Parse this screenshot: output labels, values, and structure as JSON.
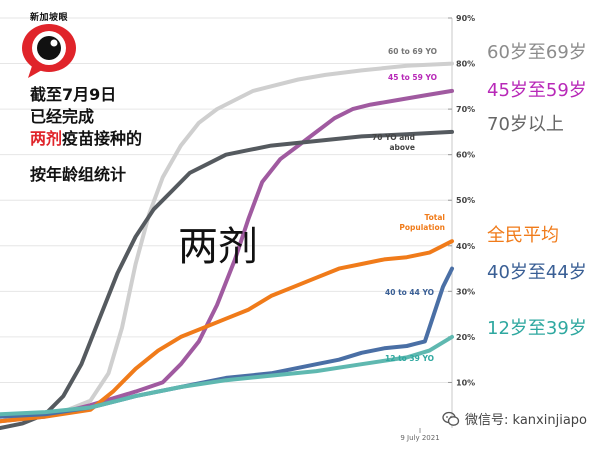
{
  "chart_data": {
    "type": "line",
    "title_lines": [
      "截至7月9日",
      "已经完成"
    ],
    "title_red": "两剂",
    "title_after_red": "疫苗接种的",
    "subtitle": "按年龄组统计",
    "center_label": "两剂",
    "x_label": "9 July 2021",
    "ylim": [
      0,
      90
    ],
    "y_ticks": [
      "10%",
      "20%",
      "30%",
      "40%",
      "50%",
      "60%",
      "70%",
      "80%",
      "90%"
    ],
    "y_tick_values": [
      10,
      20,
      30,
      40,
      50,
      60,
      70,
      80,
      90
    ],
    "x_range": [
      0,
      100
    ],
    "series": [
      {
        "name": "60 to 69 YO",
        "side_label": "60岁至69岁",
        "color": "#cfcfcf",
        "side_color": "#8c8c8c",
        "line_label_color": "#777777",
        "x": [
          0,
          5,
          10,
          15,
          20,
          24,
          27,
          30,
          33,
          36,
          40,
          44,
          48,
          52,
          56,
          60,
          66,
          72,
          80,
          90,
          100
        ],
        "values": [
          2.5,
          2.5,
          3,
          4,
          6,
          12,
          22,
          36,
          47,
          55,
          62,
          67,
          70,
          72,
          74,
          75,
          76.5,
          77.5,
          78.5,
          79.5,
          80
        ]
      },
      {
        "name": "45 to 59 YO",
        "side_label": "45岁至59岁",
        "color": "#a05aa0",
        "side_color": "#b829b8",
        "line_label_color": "#b829b8",
        "x": [
          0,
          10,
          20,
          30,
          36,
          40,
          44,
          48,
          52,
          55,
          58,
          62,
          66,
          70,
          74,
          78,
          82,
          88,
          94,
          100
        ],
        "values": [
          1.5,
          2.5,
          5,
          8,
          10,
          14,
          19,
          27,
          37,
          46,
          54,
          59,
          62,
          65,
          68,
          70,
          71,
          72,
          73,
          74
        ]
      },
      {
        "name": "70 YO and above",
        "side_label": "70岁以上",
        "color": "#555a5f",
        "side_color": "#666666",
        "line_label_color": "#444444",
        "x": [
          0,
          5,
          10,
          14,
          18,
          22,
          26,
          30,
          34,
          38,
          42,
          46,
          50,
          55,
          60,
          70,
          80,
          90,
          100
        ],
        "values": [
          0,
          1,
          3,
          7,
          14,
          24,
          34,
          42,
          48,
          52,
          56,
          58,
          60,
          61,
          62,
          63,
          64,
          64.5,
          65
        ]
      },
      {
        "name": "Total Population",
        "side_label": "全民平均",
        "color": "#f07b1a",
        "side_color": "#f07b1a",
        "line_label_color": "#f07b1a",
        "x": [
          0,
          10,
          20,
          25,
          30,
          35,
          40,
          45,
          50,
          55,
          60,
          65,
          70,
          75,
          80,
          85,
          90,
          95,
          100
        ],
        "values": [
          1.5,
          2.5,
          4,
          8,
          13,
          17,
          20,
          22,
          24,
          26,
          29,
          31,
          33,
          35,
          36,
          37,
          37.5,
          38.5,
          41
        ]
      },
      {
        "name": "40 to 44 YO",
        "side_label": "40岁至44岁",
        "color": "#4a6fa5",
        "side_color": "#3a5f95",
        "line_label_color": "#3a5f95",
        "x": [
          0,
          10,
          20,
          30,
          40,
          50,
          60,
          70,
          75,
          80,
          85,
          90,
          92,
          94,
          96,
          98,
          100
        ],
        "values": [
          2.5,
          3,
          4.5,
          7,
          9,
          11,
          12,
          14,
          15,
          16.5,
          17.5,
          18,
          18.5,
          19,
          25,
          31,
          35
        ]
      },
      {
        "name": "12 to 39 YO",
        "side_label": "12岁至39岁",
        "color": "#5fb8b0",
        "side_color": "#2fa8a0",
        "line_label_color": "#2fa8a0",
        "x": [
          0,
          10,
          20,
          30,
          40,
          50,
          60,
          70,
          80,
          90,
          95,
          100
        ],
        "values": [
          3,
          3.5,
          4.5,
          7,
          9,
          10.5,
          11.5,
          12.5,
          14,
          15.5,
          17,
          20
        ]
      }
    ]
  },
  "logo_text": "新加坡眼",
  "watermark": "微信号: kanxinjiapo",
  "icons": {
    "logo": "eye-logo-icon",
    "watermark": "wechat-icon"
  }
}
